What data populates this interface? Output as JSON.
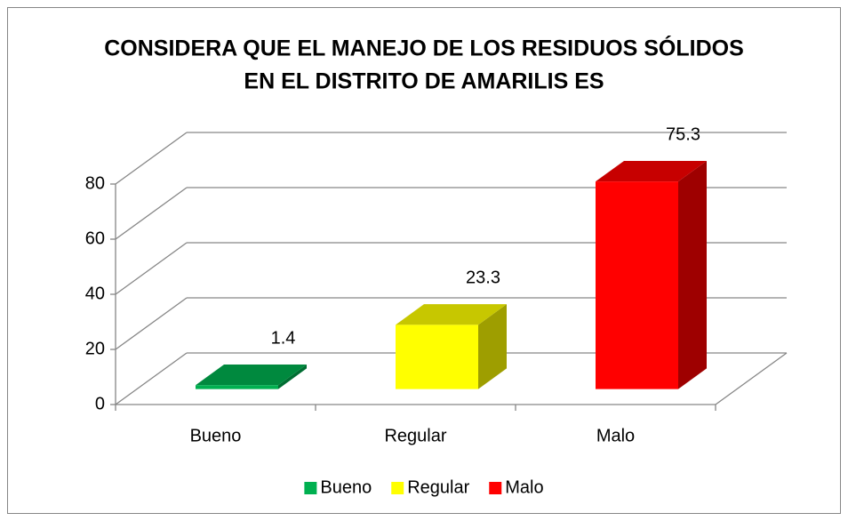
{
  "chart_data": {
    "type": "bar3d",
    "title": [
      "CONSIDERA QUE EL MANEJO DE LOS RESIDUOS SÓLIDOS",
      "EN EL DISTRITO DE AMARILIS ES"
    ],
    "categories": [
      "Bueno",
      "Regular",
      "Malo"
    ],
    "values": [
      1.4,
      23.3,
      75.3
    ],
    "colors": [
      "#00b050",
      "#ffff00",
      "#ff0000"
    ],
    "ylim": [
      0,
      80
    ],
    "yticks": [
      0,
      20,
      40,
      60,
      80
    ],
    "grid": true,
    "legend": "bottom"
  }
}
